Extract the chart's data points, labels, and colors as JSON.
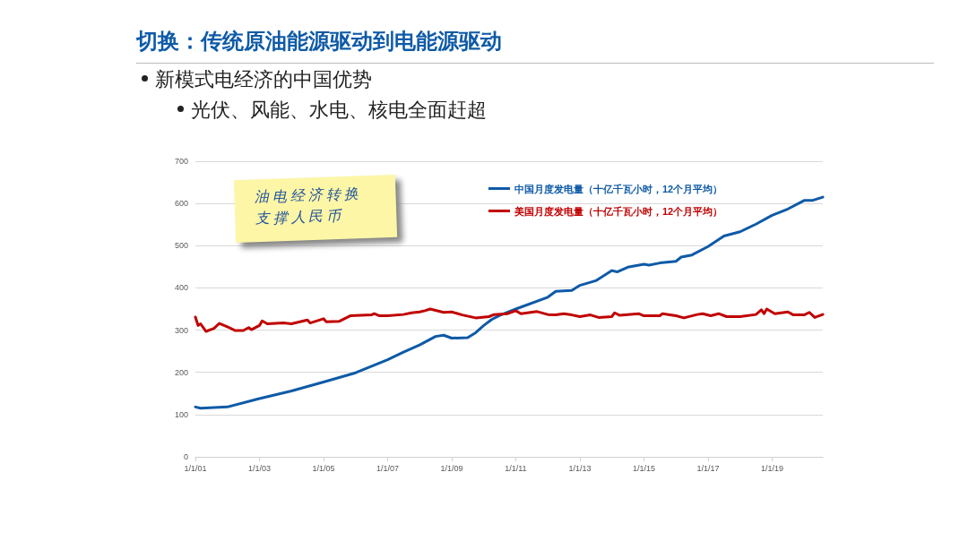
{
  "chart_data": {
    "type": "line",
    "title": "切换：传统原油能源驱动到电能源驱动",
    "subtitle": "新模式电经济的中国优势",
    "annotations": [
      "光伏、风能、水电、核电全面赶超",
      "油电经济转换支撑人民币"
    ],
    "xlim": [
      "2001-01",
      "2020-08"
    ],
    "xticks": [
      {
        "value": "2001-01-01",
        "label": "1/1/01"
      },
      {
        "value": "2003-01-01",
        "label": "1/1/03"
      },
      {
        "value": "2005-01-01",
        "label": "1/1/05"
      },
      {
        "value": "2007-01-01",
        "label": "1/1/07"
      },
      {
        "value": "2009-01-01",
        "label": "1/1/09"
      },
      {
        "value": "2011-01-01",
        "label": "1/1/11"
      },
      {
        "value": "2013-01-01",
        "label": "1/1/13"
      },
      {
        "value": "2015-01-01",
        "label": "1/1/15"
      },
      {
        "value": "2017-01-01",
        "label": "1/1/17"
      },
      {
        "value": "2019-01-01",
        "label": "1/1/19"
      }
    ],
    "ylim": [
      0,
      700
    ],
    "yticks": [
      0,
      100,
      200,
      300,
      400,
      500,
      600,
      700
    ],
    "grid": "y",
    "legend": "top right",
    "marker": "none",
    "line_style": "solid",
    "series": [
      {
        "name": "中国月度发电量（十亿千瓦小时，12个月平均）",
        "color": "#0e5aa7",
        "x": [
          "2001-01",
          "2001-03",
          "2002-01",
          "2003-01",
          "2004-01",
          "2005-01",
          "2006-01",
          "2007-01",
          "2007-07",
          "2008-01",
          "2008-07",
          "2008-10",
          "2009-01",
          "2009-07",
          "2009-10",
          "2010-01",
          "2010-04",
          "2010-07",
          "2011-01",
          "2012-01",
          "2012-04",
          "2012-10",
          "2013-01",
          "2013-07",
          "2014-01",
          "2014-03",
          "2014-07",
          "2015-01",
          "2015-03",
          "2015-07",
          "2016-01",
          "2016-03",
          "2016-07",
          "2017-01",
          "2017-07",
          "2018-01",
          "2018-07",
          "2019-01",
          "2019-07",
          "2020-01",
          "2020-04",
          "2020-08"
        ],
        "values": [
          118,
          115,
          118,
          138,
          156,
          177,
          199,
          230,
          248,
          265,
          285,
          288,
          281,
          282,
          294,
          311,
          325,
          335,
          350,
          378,
          392,
          394,
          406,
          417,
          441,
          438,
          449,
          456,
          454,
          459,
          463,
          473,
          478,
          498,
          523,
          533,
          551,
          572,
          587,
          607,
          607,
          615
        ]
      },
      {
        "name": "美国月度发电量（十亿千瓦小时，12个月平均）",
        "color": "#c00000",
        "x": [
          "2001-01",
          "2001-02",
          "2001-03",
          "2001-05",
          "2001-08",
          "2001-10",
          "2002-01",
          "2002-04",
          "2002-07",
          "2002-09",
          "2002-10",
          "2003-01",
          "2003-02",
          "2003-04",
          "2003-10",
          "2004-01",
          "2004-07",
          "2004-08",
          "2005-01",
          "2005-02",
          "2005-07",
          "2005-11",
          "2006-07",
          "2006-08",
          "2006-10",
          "2007-01",
          "2007-07",
          "2007-10",
          "2008-01",
          "2008-03",
          "2008-05",
          "2008-10",
          "2009-01",
          "2009-05",
          "2009-10",
          "2010-03",
          "2010-05",
          "2010-10",
          "2011-01",
          "2011-03",
          "2011-09",
          "2012-01",
          "2012-04",
          "2012-07",
          "2012-10",
          "2013-01",
          "2013-05",
          "2013-08",
          "2014-01",
          "2014-02",
          "2014-04",
          "2014-11",
          "2015-01",
          "2015-07",
          "2015-08",
          "2016-01",
          "2016-04",
          "2016-09",
          "2016-11",
          "2017-02",
          "2017-05",
          "2017-08",
          "2018-01",
          "2018-07",
          "2018-09",
          "2018-10",
          "2018-11",
          "2019-02",
          "2019-07",
          "2019-09",
          "2020-01",
          "2020-03",
          "2020-05",
          "2020-08"
        ],
        "values": [
          331,
          311,
          315,
          297,
          304,
          316,
          308,
          299,
          299,
          306,
          301,
          311,
          322,
          315,
          317,
          315,
          324,
          317,
          327,
          320,
          321,
          334,
          336,
          339,
          334,
          334,
          337,
          341,
          343,
          346,
          350,
          342,
          343,
          336,
          329,
          332,
          337,
          339,
          346,
          339,
          344,
          337,
          336,
          339,
          336,
          332,
          336,
          330,
          332,
          341,
          335,
          339,
          334,
          334,
          339,
          334,
          329,
          337,
          339,
          334,
          339,
          332,
          332,
          337,
          348,
          339,
          350,
          339,
          343,
          336,
          336,
          342,
          330,
          337
        ]
      }
    ]
  }
}
